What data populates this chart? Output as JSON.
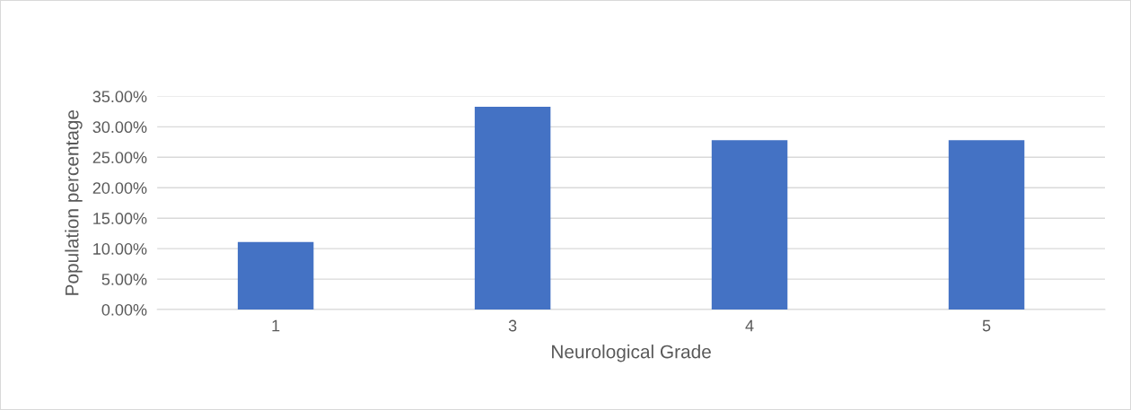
{
  "chart_data": {
    "type": "bar",
    "xlabel": "Neurological Grade",
    "ylabel": "Population percentage",
    "categories": [
      "1",
      "3",
      "4",
      "5"
    ],
    "values": [
      11.1,
      33.3,
      27.8,
      27.8
    ],
    "color": "#4472c4",
    "ylim": [
      0,
      35
    ],
    "yticks": [
      {
        "value": 0,
        "label": "0.00%"
      },
      {
        "value": 5,
        "label": "5.00%"
      },
      {
        "value": 10,
        "label": "10.00%"
      },
      {
        "value": 15,
        "label": "15.00%"
      },
      {
        "value": 20,
        "label": "20.00%"
      },
      {
        "value": 25,
        "label": "25.00%"
      },
      {
        "value": 30,
        "label": "30.00%"
      },
      {
        "value": 35,
        "label": "35.00%"
      }
    ],
    "grid": "y"
  }
}
